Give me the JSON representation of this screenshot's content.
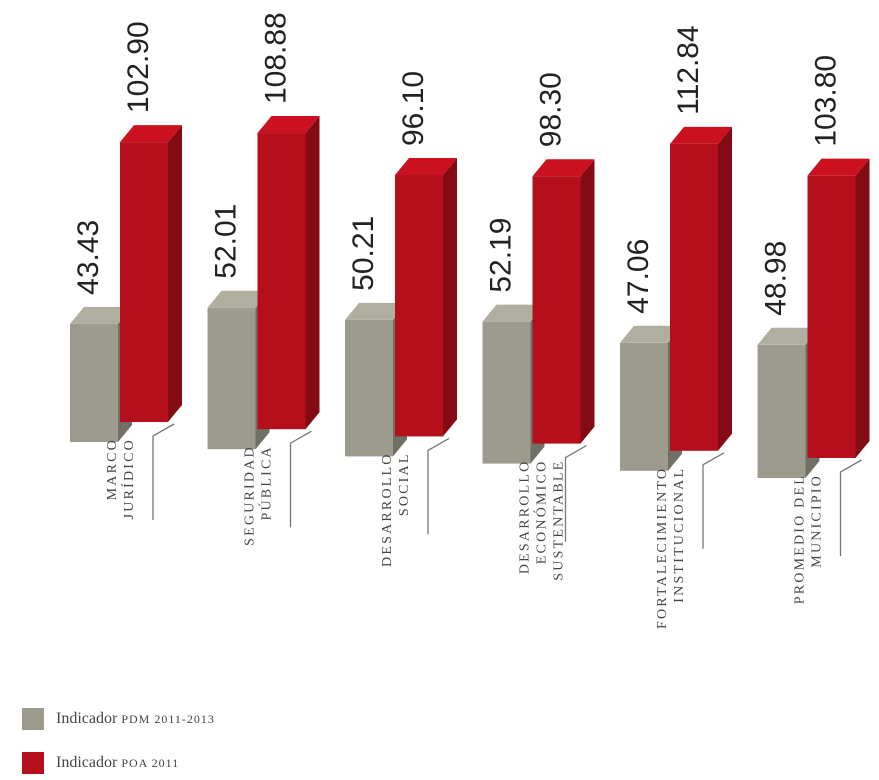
{
  "chart_data": {
    "type": "bar",
    "categories": [
      [
        "MARCO",
        "JURÍDICO"
      ],
      [
        "SEGURIDAD",
        "PÚBLICA"
      ],
      [
        "DESARROLLO",
        "SOCIAL"
      ],
      [
        "DESARROLLO",
        "ECONÓMICO",
        "SUSTENTABLE"
      ],
      [
        "FORTALECIMIENTO",
        "INSTITUCIONAL"
      ],
      [
        "PROMEDIO DEL",
        "MUNICIPIO"
      ]
    ],
    "series": [
      {
        "name": "Indicador PDM 2011-2013",
        "values": [
          43.43,
          52.01,
          50.21,
          52.19,
          47.06,
          48.98
        ],
        "labels": [
          "43.43",
          "52.01",
          "50.21",
          "52.19",
          "47.06",
          "48.98"
        ],
        "color": "#9d9b8e"
      },
      {
        "name": "Indicador POA 2011",
        "values": [
          102.9,
          108.88,
          96.1,
          98.3,
          112.84,
          103.8
        ],
        "labels": [
          "102.90",
          "108.88",
          "96.10",
          "98.30",
          "112.84",
          "103.80"
        ],
        "color": "#b50f1c"
      }
    ],
    "style": "3d-perspective",
    "grid": false,
    "legend_position": "bottom-left"
  },
  "legend": {
    "pdm_prefix": "Indicador ",
    "pdm_text": "pdm 2011-2013",
    "poa_prefix": "Indicador ",
    "poa_text": "poa 2011"
  }
}
